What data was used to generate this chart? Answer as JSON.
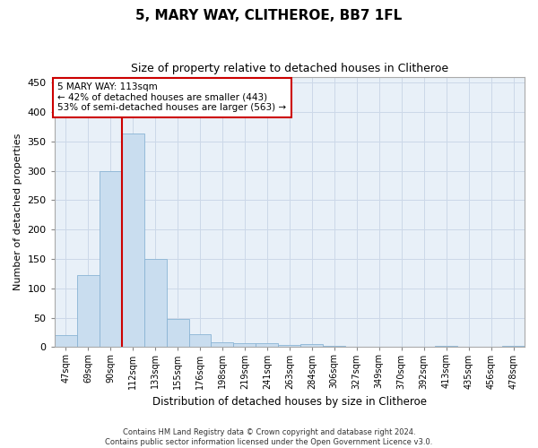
{
  "title1": "5, MARY WAY, CLITHEROE, BB7 1FL",
  "title2": "Size of property relative to detached houses in Clitheroe",
  "xlabel": "Distribution of detached houses by size in Clitheroe",
  "ylabel": "Number of detached properties",
  "bin_labels": [
    "47sqm",
    "69sqm",
    "90sqm",
    "112sqm",
    "133sqm",
    "155sqm",
    "176sqm",
    "198sqm",
    "219sqm",
    "241sqm",
    "263sqm",
    "284sqm",
    "306sqm",
    "327sqm",
    "349sqm",
    "370sqm",
    "392sqm",
    "413sqm",
    "435sqm",
    "456sqm",
    "478sqm"
  ],
  "bar_heights": [
    20,
    122,
    300,
    363,
    150,
    48,
    22,
    8,
    6,
    6,
    3,
    5,
    2,
    0,
    1,
    0,
    0,
    2,
    0,
    1,
    2
  ],
  "bar_color": "#c9ddef",
  "bar_edge_color": "#8ab4d4",
  "property_line_index": 3,
  "property_line_color": "#cc0000",
  "annotation_text": "5 MARY WAY: 113sqm\n← 42% of detached houses are smaller (443)\n53% of semi-detached houses are larger (563) →",
  "annotation_box_color": "#ffffff",
  "annotation_box_edge": "#cc0000",
  "ylim": [
    0,
    460
  ],
  "yticks": [
    0,
    50,
    100,
    150,
    200,
    250,
    300,
    350,
    400,
    450
  ],
  "grid_color": "#ccd8e8",
  "bg_color": "#e8f0f8",
  "footer_line1": "Contains HM Land Registry data © Crown copyright and database right 2024.",
  "footer_line2": "Contains public sector information licensed under the Open Government Licence v3.0."
}
